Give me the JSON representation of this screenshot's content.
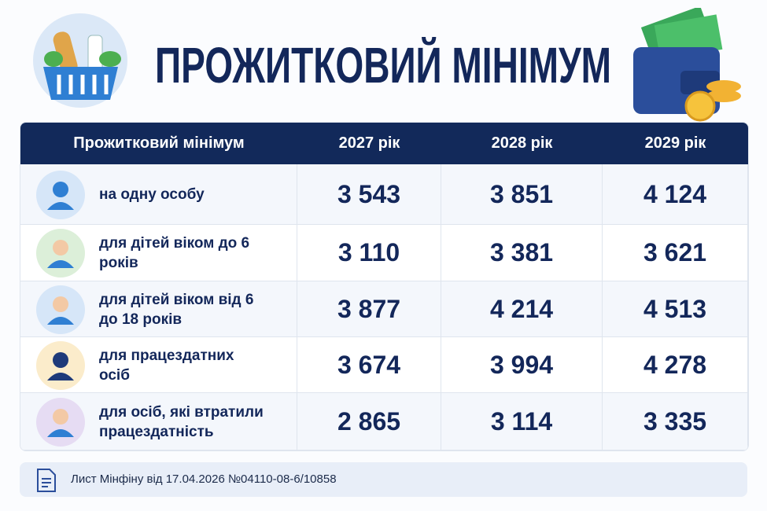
{
  "header": {
    "title": "ПРОЖИТКОВИЙ МІНІМУМ"
  },
  "table": {
    "columns": [
      "Прожитковий мінімум",
      "2027 рік",
      "2028 рік",
      "2029 рік"
    ],
    "rows": [
      [
        "на одну особу",
        "3 543",
        "3 851",
        "4 124"
      ],
      [
        "для дітей віком до 6 років",
        "3 110",
        "3 381",
        "3 621"
      ],
      [
        "для дітей віком від 6 до 18 років",
        "3 877",
        "4 214",
        "4 513"
      ],
      [
        "для працездатних осіб",
        "3 674",
        "3 994",
        "4 278"
      ],
      [
        "для осіб, які втратили працездатність",
        "2 865",
        "3 114",
        "3 335"
      ]
    ]
  },
  "footer": {
    "note": "Лист Мінфіну від 17.04.2026 №04110-08-6/10858"
  }
}
